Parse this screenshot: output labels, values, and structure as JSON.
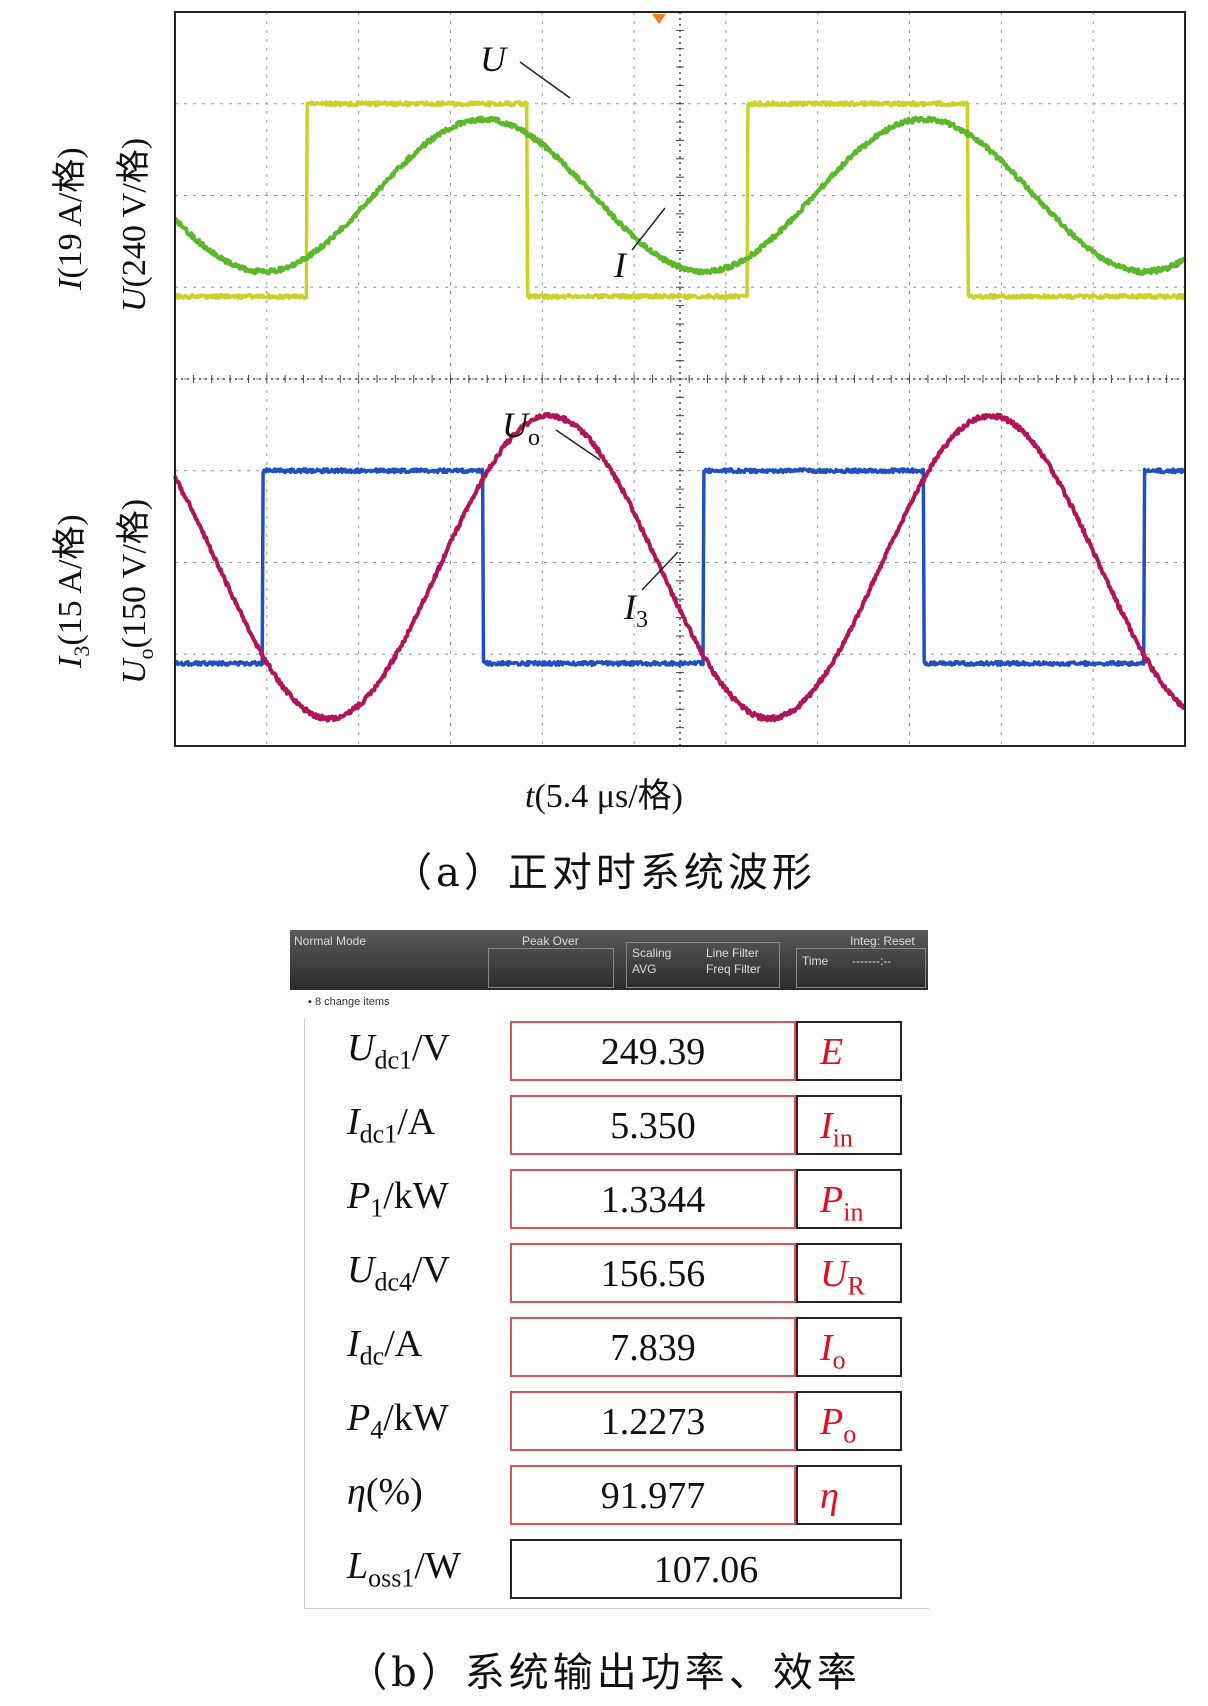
{
  "figure_a": {
    "caption": "（a）正对时系统波形",
    "top_ylabel": {
      "I_part": "I",
      "I_scale": "(19 A/格)",
      "U_part": "U",
      "U_scale": "(240 V/格)"
    },
    "bottom_ylabel": {
      "I3_part": "I",
      "I3_sub": "3",
      "I3_scale": "(15 A/格)",
      "Uo_part": "U",
      "Uo_sub": "o",
      "Uo_scale": "(150 V/格)"
    },
    "xlabel": {
      "t_part": "t",
      "scale": "(5.4 μs/格)"
    },
    "markers": {
      "U": "U",
      "I": "I",
      "Uo": "U",
      "Uo_sub": "o",
      "I3": "I",
      "I3_sub": "3"
    }
  },
  "chart_data": {
    "type": "line",
    "x_divisions": 11,
    "y_divisions": 8,
    "grid": true,
    "series": [
      {
        "name": "U",
        "color": "#c8d228",
        "waveform": "square",
        "high_div": 7.0,
        "low_div": 4.9,
        "period_div": 4.8
      },
      {
        "name": "I",
        "color": "#5cb82a",
        "waveform": "sine",
        "center_div": 6.0,
        "amplitude_div": 0.83,
        "period_div": 4.8
      },
      {
        "name": "Uo",
        "color": "#2050c0",
        "waveform": "square",
        "high_div": 3.0,
        "low_div": 0.9,
        "period_div": 4.8
      },
      {
        "name": "I3",
        "color": "#b0145a",
        "waveform": "sine",
        "center_div": 1.95,
        "amplitude_div": 1.65,
        "period_div": 4.8
      }
    ]
  },
  "figure_b": {
    "caption": "（b）系统输出功率、效率",
    "ribbon": {
      "mode": "Normal Mode",
      "peak": "Peak Over",
      "scaling": "Scaling",
      "avg": "AVG",
      "line_filter": "Line Filter",
      "freq_filter": "Freq Filter",
      "integ": "Integ: Reset",
      "time": "Time",
      "time_value": "-------:--"
    },
    "sub_label": "8 change items",
    "rows": [
      {
        "sym": "U",
        "sub": "dc1",
        "unit": "/V",
        "value": "249.39",
        "tag": "E",
        "tag_sub": ""
      },
      {
        "sym": "I",
        "sub": "dc1",
        "unit": "/A",
        "value": "5.350",
        "tag": "I",
        "tag_sub": "in"
      },
      {
        "sym": "P",
        "sub": "1",
        "unit": "/kW",
        "value": "1.3344",
        "tag": "P",
        "tag_sub": "in"
      },
      {
        "sym": "U",
        "sub": "dc4",
        "unit": "/V",
        "value": "156.56",
        "tag": "U",
        "tag_sub": "R"
      },
      {
        "sym": "I",
        "sub": "dc",
        "unit": "/A",
        "value": "7.839",
        "tag": "I",
        "tag_sub": "o"
      },
      {
        "sym": "P",
        "sub": "4",
        "unit": "/kW",
        "value": "1.2273",
        "tag": "P",
        "tag_sub": "o"
      },
      {
        "sym": "η",
        "sub": "",
        "unit": "(%)",
        "value": "91.977",
        "tag": "η",
        "tag_sub": ""
      },
      {
        "sym": "L",
        "sub": "oss1",
        "unit": "/W",
        "value": "107.06",
        "tag": "",
        "tag_sub": ""
      }
    ]
  }
}
